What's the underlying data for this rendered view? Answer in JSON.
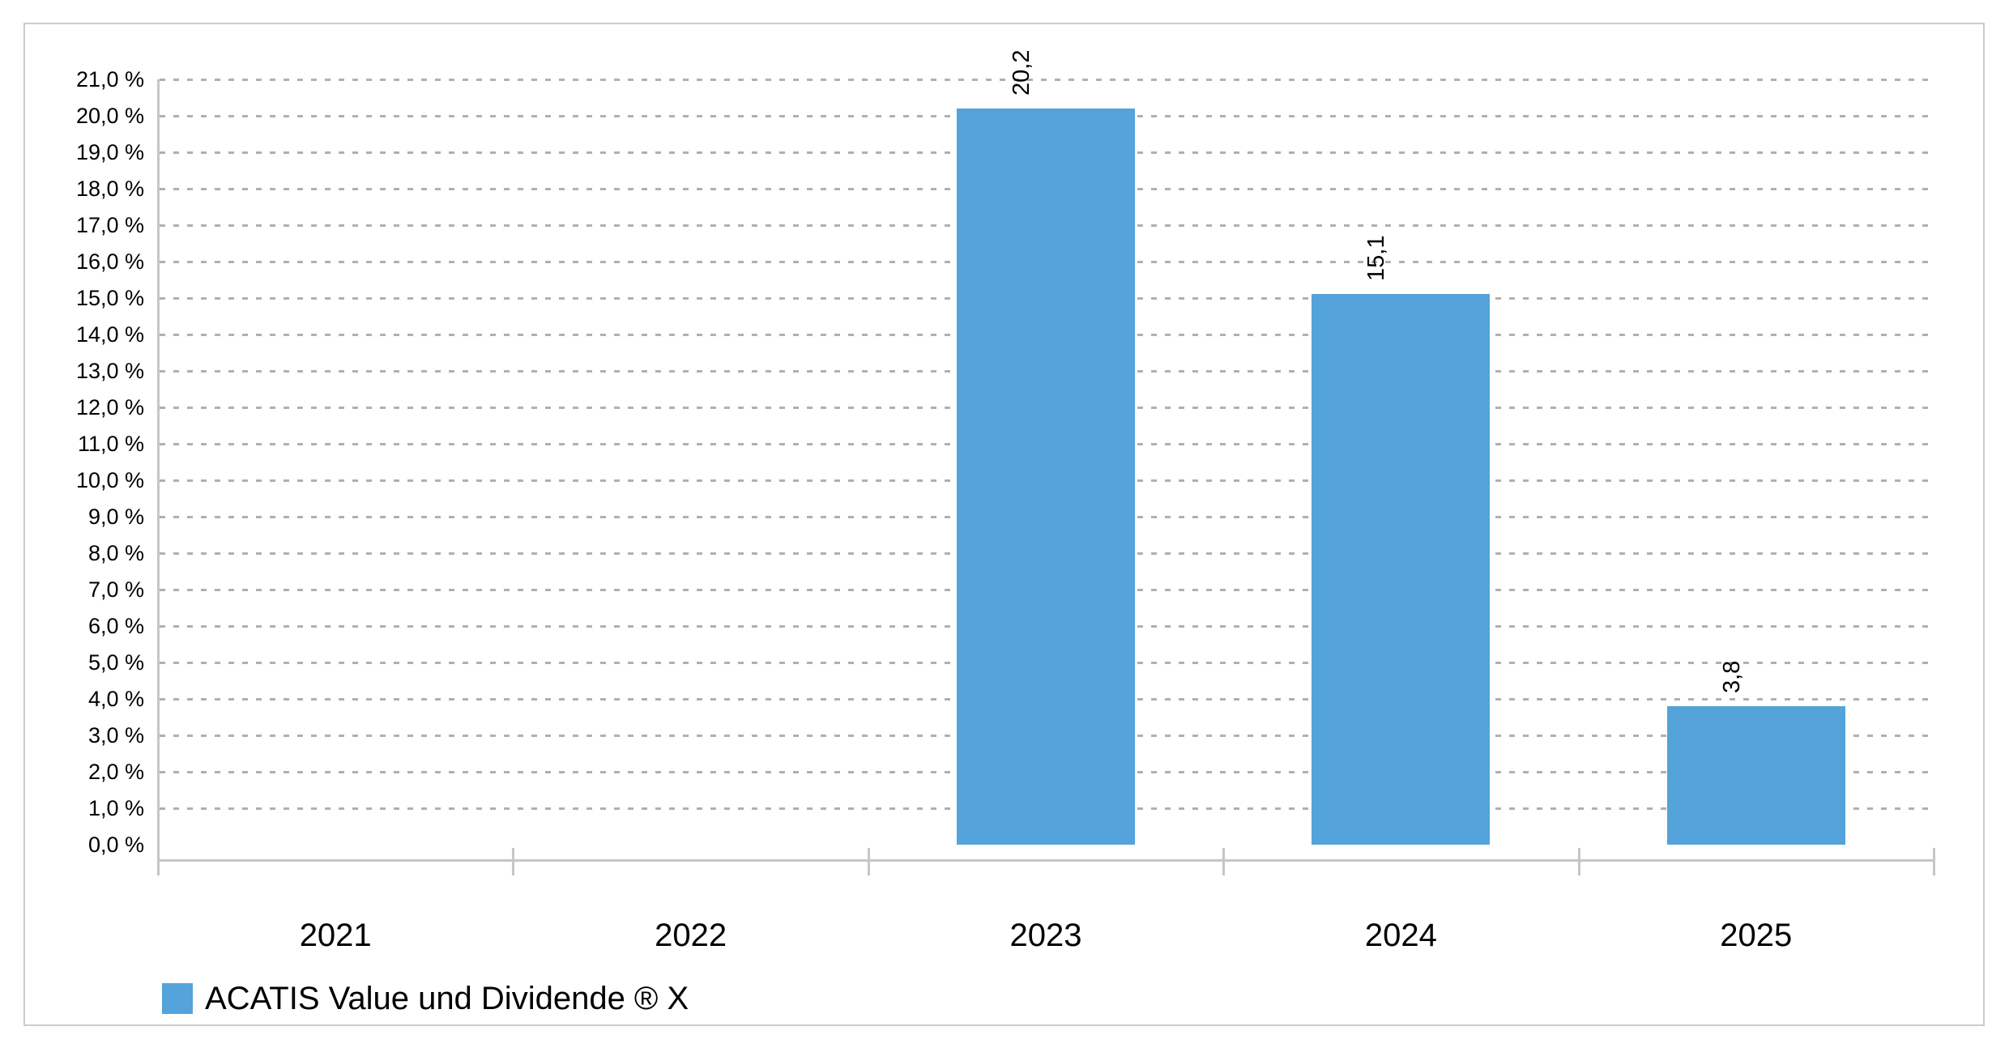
{
  "chart_data": {
    "type": "bar",
    "title": "",
    "categories": [
      "2021",
      "2022",
      "2023",
      "2024",
      "2025"
    ],
    "series": [
      {
        "name": "ACATIS Value und Dividende ® X",
        "values": [
          null,
          null,
          20.2,
          15.1,
          3.8
        ],
        "value_labels": [
          "",
          "",
          "20,2",
          "15,1",
          "3,8"
        ],
        "color": "#54A3DA"
      }
    ],
    "xlabel": "",
    "ylabel": "",
    "ylim": [
      0,
      21
    ],
    "y_tick_step": 1,
    "y_tick_labels": [
      "21,0 %",
      "20,0 %",
      "19,0 %",
      "18,0 %",
      "17,0 %",
      "16,0 %",
      "15,0 %",
      "14,0 %",
      "13,0 %",
      "12,0 %",
      "11,0 %",
      "10,0 %",
      "9,0 %",
      "8,0 %",
      "7,0 %",
      "6,0 %",
      "5,0 %",
      "4,0 %",
      "3,0 %",
      "2,0 %",
      "1,0 %",
      "0,0 %"
    ],
    "grid": "dotted-horizontal",
    "grid_on": true,
    "legend_position": "bottom-left",
    "value_label_rotation": -90,
    "number_format": "de-DE"
  },
  "legend": {
    "label": "ACATIS Value und Dividende ® X"
  },
  "colors": {
    "bar": "#54A3DA",
    "axis": "#c6c6c6",
    "grid_dash": "#b0b0b0",
    "frame_border": "#cccccc",
    "text": "#000000",
    "background": "#ffffff"
  }
}
